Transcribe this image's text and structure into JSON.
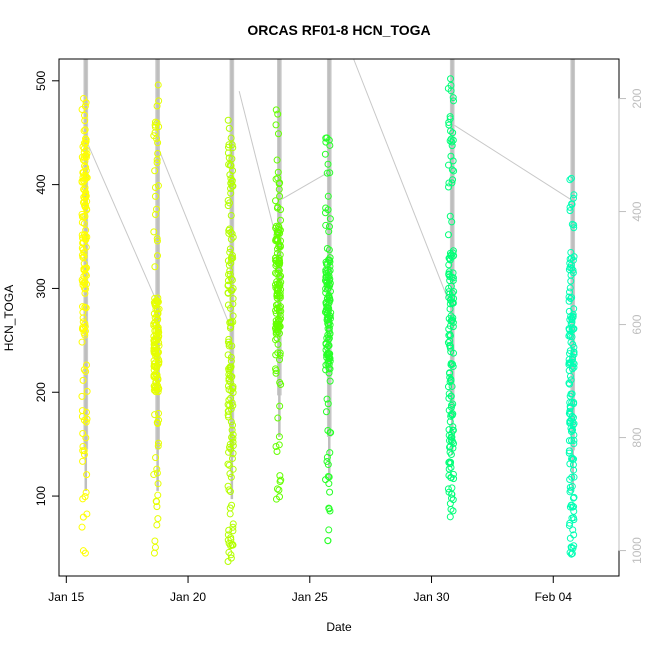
{
  "chart_data": {
    "type": "scatter",
    "title": "ORCAS RF01-8 HCN_TOGA",
    "xlabel": "Date",
    "ylabel": "HCN_TOGA",
    "x_ticks": [
      "Jan 15",
      "Jan 20",
      "Jan 25",
      "Jan 30",
      "Feb 04"
    ],
    "x_tick_days": [
      15,
      20,
      25,
      30,
      35
    ],
    "xlim": [
      14.7,
      37.7
    ],
    "ylim": [
      23,
      521
    ],
    "y_ticks": [
      100,
      200,
      300,
      400,
      500
    ],
    "y2_ticks": [
      200,
      400,
      600,
      800,
      1000
    ],
    "y2lim": [
      1045,
      130
    ],
    "y2_orientation": "inverted",
    "y2_color": "#bebebe",
    "point_style": "open-circle",
    "grid": false,
    "legend": "none",
    "flights": [
      {
        "day": 15.75,
        "color": "#ffff00",
        "ymin": 45,
        "ymax": 483,
        "cluster_lo": 260,
        "cluster_hi": 445,
        "trace_day": 15.8,
        "trace_top": 150
      },
      {
        "day": 18.7,
        "color": "#e6ff00",
        "ymin": 45,
        "ymax": 496,
        "cluster_lo": 200,
        "cluster_hi": 290,
        "trace_day": 18.75,
        "trace_top": 170
      },
      {
        "day": 21.75,
        "color": "#b4ff00",
        "ymin": 37,
        "ymax": 462,
        "cluster_lo": 40,
        "cluster_hi": 440,
        "trace_day": 21.8,
        "trace_top": 150
      },
      {
        "day": 23.7,
        "color": "#64ff00",
        "ymin": 97,
        "ymax": 472,
        "cluster_lo": 250,
        "cluster_hi": 360,
        "trace_day": 23.75,
        "trace_top": 220
      },
      {
        "day": 25.75,
        "color": "#28ff28",
        "ymin": 57,
        "ymax": 445,
        "cluster_lo": 220,
        "cluster_hi": 330,
        "trace_day": 25.8,
        "trace_top": 140
      },
      {
        "day": 30.8,
        "color": "#00ff78",
        "ymin": 80,
        "ymax": 502,
        "cluster_lo": 85,
        "cluster_hi": 340,
        "trace_day": 30.85,
        "trace_top": 160
      },
      {
        "day": 35.75,
        "color": "#00ffb4",
        "ymin": 44,
        "ymax": 406,
        "cluster_lo": 45,
        "cluster_hi": 330,
        "trace_day": 35.8,
        "trace_top": 150
      }
    ],
    "connector_lines": [
      [
        [
          15.85,
          441
        ],
        [
          18.7,
          288
        ]
      ],
      [
        [
          18.75,
          437
        ],
        [
          21.7,
          265
        ]
      ],
      [
        [
          22.1,
          490
        ],
        [
          23.6,
          350
        ]
      ],
      [
        [
          23.85,
          386
        ],
        [
          25.7,
          411
        ]
      ],
      [
        [
          26.8,
          521
        ],
        [
          30.7,
          288
        ]
      ],
      [
        [
          30.95,
          457
        ],
        [
          35.7,
          386
        ]
      ]
    ]
  }
}
